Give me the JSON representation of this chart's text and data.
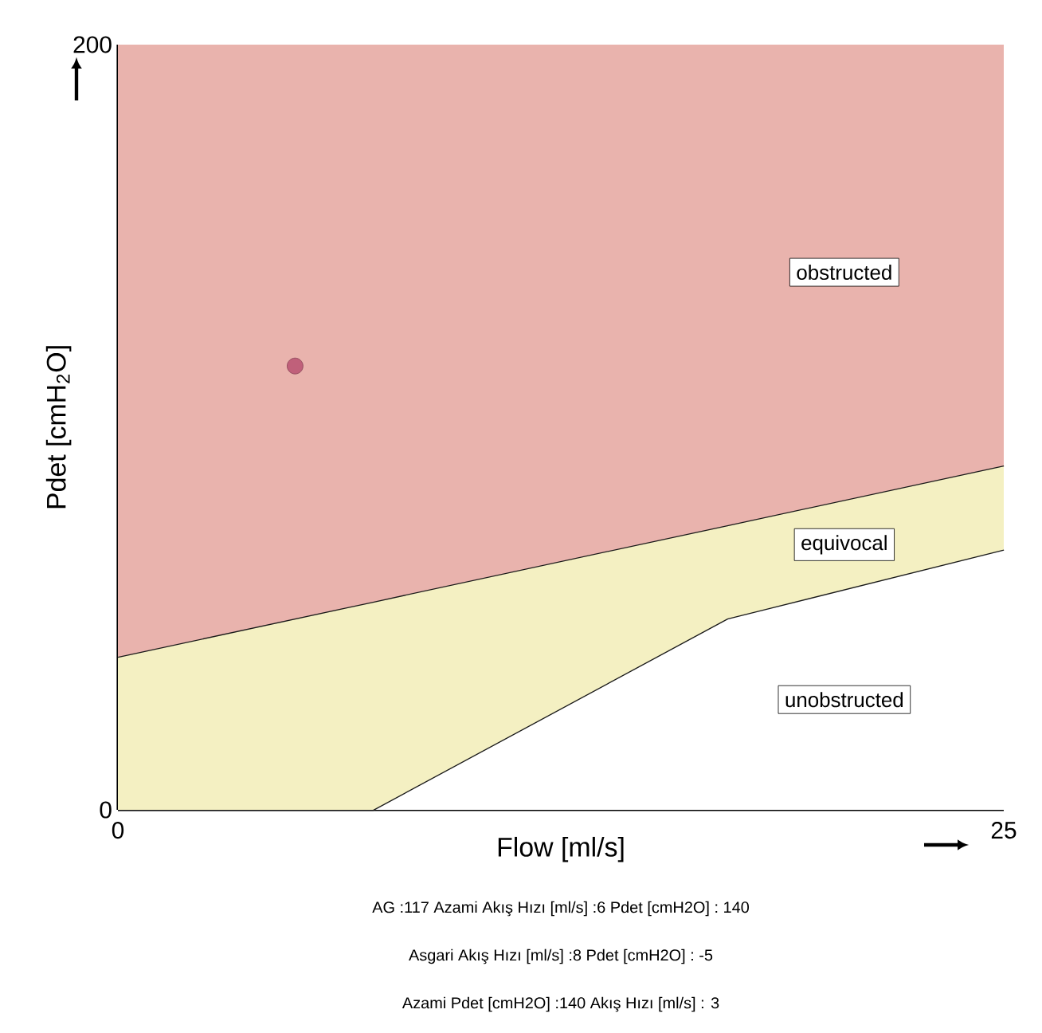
{
  "chart_data": {
    "type": "area",
    "stacked": true,
    "xlabel": "Flow [ml/s]",
    "ylabel": "Pdet [cmH$_{2}$O]",
    "xlim": [
      0,
      25
    ],
    "ylim": [
      0,
      200
    ],
    "xticks": [
      0,
      25
    ],
    "yticks": [
      0,
      200
    ],
    "grid": false,
    "series": [
      {
        "name": "unobstructed",
        "color": "#ffffff",
        "line_style": "solid",
        "x": [
          0,
          7.2,
          17.2,
          25
        ],
        "values": [
          0,
          0,
          50,
          68
        ]
      },
      {
        "name": "equivocal",
        "color": "#f4f0c2",
        "line_style": "solid",
        "x": [
          0,
          7.2,
          17.2,
          25
        ],
        "values": [
          40,
          54.4,
          24.4,
          22
        ]
      },
      {
        "name": "obstructed",
        "color": "#e9b3ad",
        "x": [
          0,
          7.2,
          17.2,
          25
        ],
        "values": [
          160,
          145.6,
          125.6,
          110
        ]
      },
      {
        "type": "scatter",
        "color": "#c0607a",
        "marker": "circle",
        "x": [
          5
        ],
        "values": [
          116
        ]
      }
    ],
    "annotations": [
      "AG :117   Azami Akış Hızı [ml/s]  :6   Pdet [cmH2O]  : 140",
      "Asgari Akış Hızı [ml/s]  :8   Pdet [cmH2O]  : -5",
      "Azami Pdet [cmH2O]  :140   Akış Hızı [ml/s]  : 3"
    ]
  }
}
